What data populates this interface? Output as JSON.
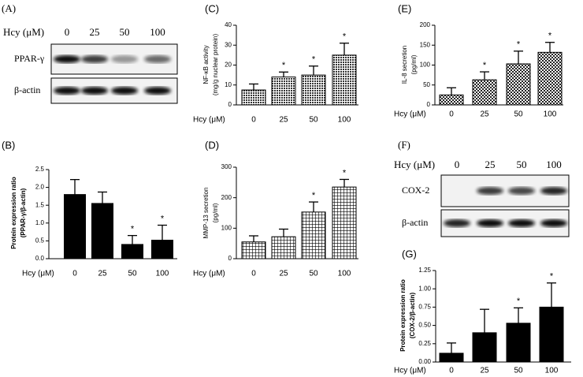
{
  "chart_data": [
    {
      "type": "bar",
      "panel_label": "(B)",
      "xlabel": "Hcy (μM)",
      "ylabel": [
        "Protein expression ratio",
        "(PPAR-γ/β-actin)"
      ],
      "categories": [
        "0",
        "25",
        "50",
        "100"
      ],
      "values": [
        1.8,
        1.55,
        0.4,
        0.52
      ],
      "errors": [
        0.42,
        0.32,
        0.25,
        0.42
      ],
      "annotations": [
        null,
        null,
        "*",
        "*"
      ],
      "color": "#000000",
      "pattern": "solid",
      "ylim": [
        0,
        2.5
      ],
      "yticks": [
        {
          "value": 0,
          "label": "0.0"
        },
        0.5,
        {
          "value": 1,
          "label": "1.0"
        },
        1.5,
        {
          "value": 2,
          "label": "2.0"
        },
        2.5
      ]
    },
    {
      "type": "bar",
      "panel_label": "(C)",
      "xlabel": "Hcy (μM)",
      "ylabel": [
        "NF-κB activity",
        "(mg/g nuclear protein)"
      ],
      "categories": [
        "0",
        "25",
        "50",
        "100"
      ],
      "values": [
        7.5,
        14,
        15,
        25
      ],
      "errors": [
        3,
        2.5,
        4.5,
        6
      ],
      "annotations": [
        null,
        "*",
        "*",
        "*"
      ],
      "color": "#000000",
      "pattern": "dots",
      "ylim": [
        0,
        40
      ],
      "yticks": [
        0,
        10,
        20,
        30,
        40
      ]
    },
    {
      "type": "bar",
      "panel_label": "(D)",
      "xlabel": "Hcy (μM)",
      "ylabel": [
        "MMP-13 secretion",
        "(pg/ml)"
      ],
      "categories": [
        "0",
        "25",
        "50",
        "100"
      ],
      "values": [
        55,
        72,
        153,
        235
      ],
      "errors": [
        20,
        25,
        33,
        25
      ],
      "annotations": [
        null,
        null,
        "*",
        "*"
      ],
      "color": "#000000",
      "pattern": "grid",
      "ylim": [
        0,
        300
      ],
      "yticks": [
        0,
        100,
        200,
        300
      ]
    },
    {
      "type": "bar",
      "panel_label": "(E)",
      "xlabel": "Hcy (μM)",
      "ylabel": [
        "IL-8 secretion",
        "(pg/ml)"
      ],
      "categories": [
        "0",
        "25",
        "50",
        "100"
      ],
      "values": [
        25,
        63,
        103,
        132
      ],
      "errors": [
        18,
        20,
        32,
        25
      ],
      "annotations": [
        null,
        "*",
        "*",
        "*"
      ],
      "color": "#000000",
      "pattern": "checker",
      "ylim": [
        0,
        200
      ],
      "yticks": [
        0,
        50,
        100,
        150,
        200
      ]
    },
    {
      "type": "bar",
      "panel_label": "(G)",
      "xlabel": "Hcy (μM)",
      "ylabel": [
        "Protein expression ratio",
        "(COX-2/β-actin)"
      ],
      "categories": [
        "0",
        "25",
        "50",
        "100"
      ],
      "values": [
        0.12,
        0.4,
        0.53,
        0.75
      ],
      "errors": [
        0.14,
        0.32,
        0.21,
        0.33
      ],
      "annotations": [
        null,
        null,
        "*",
        "*"
      ],
      "color": "#000000",
      "pattern": "solid",
      "ylim": [
        0,
        1.25
      ],
      "yticks": [
        {
          "value": 0,
          "label": "0.00"
        },
        0.25,
        {
          "value": 0.5,
          "label": "0.50"
        },
        0.75,
        {
          "value": 1,
          "label": "1.00"
        },
        1.25
      ]
    }
  ],
  "blots": [
    {
      "panel_label": "(A)",
      "treatment": "Hcy (μM)",
      "lanes": [
        "0",
        "25",
        "50",
        "100"
      ],
      "rows": [
        "PPAR-γ",
        "β-actin"
      ]
    },
    {
      "panel_label": "(F)",
      "treatment": "Hcy (μM)",
      "lanes": [
        "0",
        "25",
        "50",
        "100"
      ],
      "rows": [
        "COX-2",
        "β-actin"
      ]
    }
  ]
}
